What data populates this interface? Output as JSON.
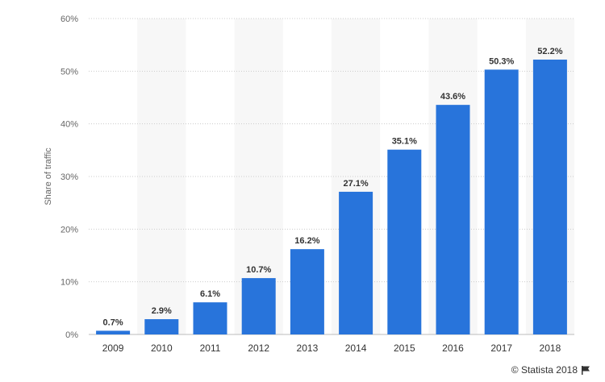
{
  "chart_data": {
    "type": "bar",
    "categories": [
      "2009",
      "2010",
      "2011",
      "2012",
      "2013",
      "2014",
      "2015",
      "2016",
      "2017",
      "2018"
    ],
    "values": [
      0.7,
      2.9,
      6.1,
      10.7,
      16.2,
      27.1,
      35.1,
      43.6,
      50.3,
      52.2
    ],
    "value_labels": [
      "0.7%",
      "2.9%",
      "6.1%",
      "10.7%",
      "16.2%",
      "27.1%",
      "35.1%",
      "43.6%",
      "50.3%",
      "52.2%"
    ],
    "ylabel": "Share of traffic",
    "ylim": [
      0,
      60
    ],
    "yticks": [
      0,
      10,
      20,
      30,
      40,
      50,
      60
    ],
    "ytick_labels": [
      "0%",
      "10%",
      "20%",
      "30%",
      "40%",
      "50%",
      "60%"
    ],
    "grid": true,
    "bar_color": "#2874db",
    "alt_band_color": "#f7f7f7"
  },
  "credit": {
    "text": "© Statista 2018",
    "icon": "flag-icon"
  }
}
